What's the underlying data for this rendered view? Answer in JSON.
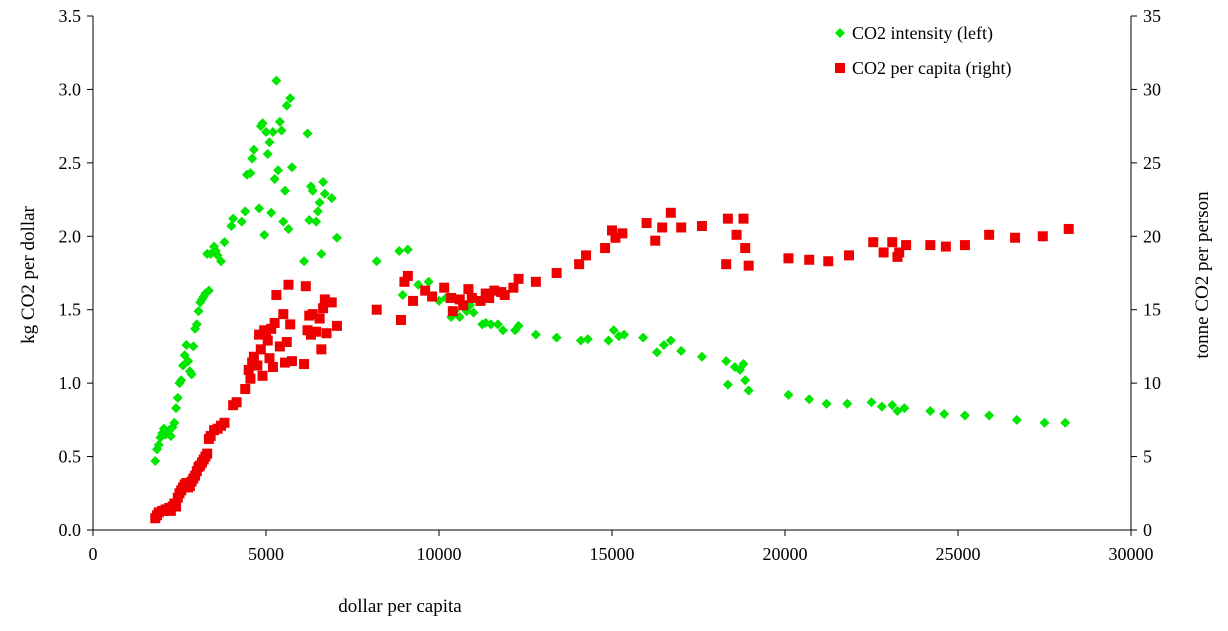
{
  "chart_data": {
    "type": "scatter",
    "title": "",
    "xlabel": "dollar per capita",
    "ylabel_left": "kg CO2 per dollar",
    "ylabel_right": "tonne CO2 per person",
    "xlim": [
      0,
      30000
    ],
    "ylim_left": [
      0,
      3.5
    ],
    "ylim_right": [
      0,
      35
    ],
    "x_ticks": [
      "0",
      "5000",
      "10000",
      "15000",
      "20000",
      "25000",
      "30000"
    ],
    "y_left_ticks": [
      "0.0",
      "0.5",
      "1.0",
      "1.5",
      "2.0",
      "2.5",
      "3.0",
      "3.5"
    ],
    "y_right_ticks": [
      "0",
      "5",
      "10",
      "15",
      "20",
      "25",
      "30",
      "35"
    ],
    "grid": false,
    "legend_position": "top-right",
    "series": [
      {
        "name": "CO2 intensity (left)",
        "axis": "left",
        "marker": "diamond",
        "color": "#00e600",
        "points": [
          [
            1800,
            0.47
          ],
          [
            1850,
            0.55
          ],
          [
            1900,
            0.58
          ],
          [
            1950,
            0.63
          ],
          [
            2000,
            0.66
          ],
          [
            2050,
            0.69
          ],
          [
            2100,
            0.65
          ],
          [
            2200,
            0.68
          ],
          [
            2250,
            0.64
          ],
          [
            2300,
            0.7
          ],
          [
            2350,
            0.73
          ],
          [
            2400,
            0.83
          ],
          [
            2450,
            0.9
          ],
          [
            2500,
            1.0
          ],
          [
            2550,
            1.02
          ],
          [
            2600,
            1.12
          ],
          [
            2650,
            1.19
          ],
          [
            2700,
            1.26
          ],
          [
            2750,
            1.15
          ],
          [
            2800,
            1.08
          ],
          [
            2850,
            1.06
          ],
          [
            2900,
            1.25
          ],
          [
            2950,
            1.37
          ],
          [
            3000,
            1.4
          ],
          [
            3050,
            1.49
          ],
          [
            3100,
            1.55
          ],
          [
            3150,
            1.57
          ],
          [
            3200,
            1.59
          ],
          [
            3250,
            1.61
          ],
          [
            3350,
            1.63
          ],
          [
            3300,
            1.88
          ],
          [
            3400,
            1.88
          ],
          [
            3500,
            1.93
          ],
          [
            3550,
            1.9
          ],
          [
            3600,
            1.87
          ],
          [
            3700,
            1.83
          ],
          [
            3800,
            1.96
          ],
          [
            4000,
            2.07
          ],
          [
            4050,
            2.12
          ],
          [
            4300,
            2.1
          ],
          [
            4400,
            2.17
          ],
          [
            4450,
            2.42
          ],
          [
            4550,
            2.43
          ],
          [
            4600,
            2.53
          ],
          [
            4650,
            2.59
          ],
          [
            4800,
            2.19
          ],
          [
            4850,
            2.75
          ],
          [
            4900,
            2.77
          ],
          [
            4950,
            2.01
          ],
          [
            5000,
            2.71
          ],
          [
            5050,
            2.56
          ],
          [
            5100,
            2.64
          ],
          [
            5150,
            2.16
          ],
          [
            5200,
            2.71
          ],
          [
            5250,
            2.39
          ],
          [
            5300,
            3.06
          ],
          [
            5350,
            2.45
          ],
          [
            5400,
            2.78
          ],
          [
            5450,
            2.72
          ],
          [
            5500,
            2.1
          ],
          [
            5550,
            2.31
          ],
          [
            5600,
            2.89
          ],
          [
            5650,
            2.05
          ],
          [
            5700,
            2.94
          ],
          [
            5750,
            2.47
          ],
          [
            6100,
            1.83
          ],
          [
            6200,
            2.7
          ],
          [
            6250,
            2.11
          ],
          [
            6300,
            2.34
          ],
          [
            6350,
            2.31
          ],
          [
            6450,
            2.1
          ],
          [
            6500,
            2.17
          ],
          [
            6550,
            2.23
          ],
          [
            6600,
            1.88
          ],
          [
            6650,
            2.37
          ],
          [
            6700,
            2.29
          ],
          [
            6900,
            2.26
          ],
          [
            7050,
            1.99
          ],
          [
            8200,
            1.83
          ],
          [
            8850,
            1.9
          ],
          [
            8950,
            1.6
          ],
          [
            9100,
            1.91
          ],
          [
            9400,
            1.67
          ],
          [
            9700,
            1.69
          ],
          [
            10000,
            1.56
          ],
          [
            10200,
            1.58
          ],
          [
            10350,
            1.45
          ],
          [
            10450,
            1.49
          ],
          [
            10600,
            1.45
          ],
          [
            10800,
            1.49
          ],
          [
            10900,
            1.53
          ],
          [
            11000,
            1.48
          ],
          [
            11250,
            1.4
          ],
          [
            11350,
            1.41
          ],
          [
            11500,
            1.4
          ],
          [
            11700,
            1.4
          ],
          [
            11850,
            1.36
          ],
          [
            12200,
            1.36
          ],
          [
            12300,
            1.39
          ],
          [
            12800,
            1.33
          ],
          [
            13400,
            1.31
          ],
          [
            14100,
            1.29
          ],
          [
            14300,
            1.3
          ],
          [
            14900,
            1.29
          ],
          [
            15050,
            1.36
          ],
          [
            15200,
            1.32
          ],
          [
            15350,
            1.33
          ],
          [
            15900,
            1.31
          ],
          [
            16300,
            1.21
          ],
          [
            16500,
            1.26
          ],
          [
            16700,
            1.29
          ],
          [
            17000,
            1.22
          ],
          [
            17600,
            1.18
          ],
          [
            18300,
            1.15
          ],
          [
            18350,
            0.99
          ],
          [
            18550,
            1.11
          ],
          [
            18700,
            1.09
          ],
          [
            18800,
            1.13
          ],
          [
            18850,
            1.02
          ],
          [
            18950,
            0.95
          ],
          [
            20100,
            0.92
          ],
          [
            20700,
            0.89
          ],
          [
            21200,
            0.86
          ],
          [
            21800,
            0.86
          ],
          [
            22500,
            0.87
          ],
          [
            22800,
            0.84
          ],
          [
            23100,
            0.85
          ],
          [
            23250,
            0.81
          ],
          [
            23450,
            0.83
          ],
          [
            24200,
            0.81
          ],
          [
            24600,
            0.79
          ],
          [
            25200,
            0.78
          ],
          [
            25900,
            0.78
          ],
          [
            26700,
            0.75
          ],
          [
            27500,
            0.73
          ],
          [
            28100,
            0.73
          ]
        ]
      },
      {
        "name": "CO2 per capita (right)",
        "axis": "right",
        "marker": "square",
        "color": "#ee0000",
        "points": [
          [
            1800,
            0.8
          ],
          [
            1850,
            1.0
          ],
          [
            1900,
            1.2
          ],
          [
            2000,
            1.3
          ],
          [
            2100,
            1.4
          ],
          [
            2200,
            1.5
          ],
          [
            2250,
            1.3
          ],
          [
            2300,
            1.6
          ],
          [
            2350,
            1.8
          ],
          [
            2400,
            1.6
          ],
          [
            2450,
            2.2
          ],
          [
            2500,
            2.5
          ],
          [
            2550,
            2.7
          ],
          [
            2600,
            2.9
          ],
          [
            2650,
            3.1
          ],
          [
            2700,
            3.2
          ],
          [
            2750,
            2.9
          ],
          [
            2800,
            3.0
          ],
          [
            2850,
            3.3
          ],
          [
            2900,
            3.5
          ],
          [
            2950,
            3.7
          ],
          [
            3000,
            4.0
          ],
          [
            3050,
            4.3
          ],
          [
            3100,
            4.4
          ],
          [
            3150,
            4.6
          ],
          [
            3200,
            4.8
          ],
          [
            3250,
            5.0
          ],
          [
            3300,
            5.2
          ],
          [
            3350,
            6.2
          ],
          [
            3400,
            6.4
          ],
          [
            3500,
            6.8
          ],
          [
            3600,
            6.9
          ],
          [
            3700,
            7.1
          ],
          [
            3800,
            7.3
          ],
          [
            4050,
            8.5
          ],
          [
            4150,
            8.7
          ],
          [
            4400,
            9.6
          ],
          [
            4500,
            10.9
          ],
          [
            4550,
            10.3
          ],
          [
            4600,
            11.4
          ],
          [
            4650,
            11.8
          ],
          [
            4750,
            11.2
          ],
          [
            4800,
            13.3
          ],
          [
            4850,
            12.3
          ],
          [
            4900,
            10.5
          ],
          [
            4950,
            13.6
          ],
          [
            5000,
            13.4
          ],
          [
            5050,
            12.9
          ],
          [
            5100,
            11.7
          ],
          [
            5150,
            13.7
          ],
          [
            5200,
            11.1
          ],
          [
            5250,
            14.1
          ],
          [
            5300,
            16.0
          ],
          [
            5400,
            12.5
          ],
          [
            5500,
            14.7
          ],
          [
            5550,
            11.4
          ],
          [
            5600,
            12.8
          ],
          [
            5650,
            16.7
          ],
          [
            5700,
            14.0
          ],
          [
            5750,
            11.5
          ],
          [
            6100,
            11.3
          ],
          [
            6150,
            16.6
          ],
          [
            6200,
            13.6
          ],
          [
            6250,
            14.6
          ],
          [
            6300,
            13.3
          ],
          [
            6350,
            14.7
          ],
          [
            6450,
            13.5
          ],
          [
            6550,
            14.4
          ],
          [
            6600,
            12.3
          ],
          [
            6650,
            15.1
          ],
          [
            6700,
            15.7
          ],
          [
            6750,
            13.4
          ],
          [
            6900,
            15.5
          ],
          [
            7050,
            13.9
          ],
          [
            8200,
            15.0
          ],
          [
            8900,
            14.3
          ],
          [
            9000,
            16.9
          ],
          [
            9100,
            17.3
          ],
          [
            9250,
            15.6
          ],
          [
            9600,
            16.3
          ],
          [
            9800,
            15.9
          ],
          [
            10150,
            16.5
          ],
          [
            10350,
            15.8
          ],
          [
            10400,
            14.9
          ],
          [
            10600,
            15.7
          ],
          [
            10700,
            15.3
          ],
          [
            10850,
            16.4
          ],
          [
            10950,
            15.8
          ],
          [
            11200,
            15.6
          ],
          [
            11350,
            16.1
          ],
          [
            11450,
            15.8
          ],
          [
            11600,
            16.3
          ],
          [
            11800,
            16.2
          ],
          [
            11900,
            16.0
          ],
          [
            12150,
            16.5
          ],
          [
            12300,
            17.1
          ],
          [
            12800,
            16.9
          ],
          [
            13400,
            17.5
          ],
          [
            14050,
            18.1
          ],
          [
            14250,
            18.7
          ],
          [
            14800,
            19.2
          ],
          [
            15000,
            20.4
          ],
          [
            15100,
            19.9
          ],
          [
            15300,
            20.2
          ],
          [
            16000,
            20.9
          ],
          [
            16250,
            19.7
          ],
          [
            16450,
            20.6
          ],
          [
            16700,
            21.6
          ],
          [
            17000,
            20.6
          ],
          [
            17600,
            20.7
          ],
          [
            18300,
            18.1
          ],
          [
            18350,
            21.2
          ],
          [
            18600,
            20.1
          ],
          [
            18800,
            21.2
          ],
          [
            18850,
            19.2
          ],
          [
            18950,
            18.0
          ],
          [
            20100,
            18.5
          ],
          [
            20700,
            18.4
          ],
          [
            21250,
            18.3
          ],
          [
            21850,
            18.7
          ],
          [
            22550,
            19.6
          ],
          [
            22850,
            18.9
          ],
          [
            23100,
            19.6
          ],
          [
            23250,
            18.6
          ],
          [
            23300,
            18.9
          ],
          [
            23500,
            19.4
          ],
          [
            24200,
            19.4
          ],
          [
            24650,
            19.3
          ],
          [
            25200,
            19.4
          ],
          [
            25900,
            20.1
          ],
          [
            26650,
            19.9
          ],
          [
            27450,
            20.0
          ],
          [
            28200,
            20.5
          ]
        ]
      }
    ]
  }
}
